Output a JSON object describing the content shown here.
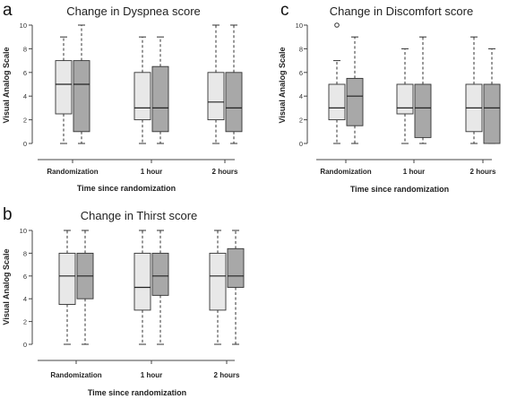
{
  "chart_data": [
    {
      "type": "boxplot",
      "panel": "a",
      "title": "Change in Dyspnea score",
      "xlabel": "Time since randomization",
      "ylabel": "Visual Analog Scale",
      "categories": [
        "Randomization",
        "1 hour",
        "2 hours"
      ],
      "ylim": [
        0,
        10
      ],
      "yticks": [
        "0",
        "2",
        "4",
        "6",
        "8",
        "10"
      ],
      "grid": false,
      "colors": [
        "#e8e8e8",
        "#a8a8a8"
      ],
      "groups": [
        [
          {
            "min": 0,
            "q1": 2.5,
            "median": 5,
            "q3": 7,
            "max": 9,
            "outliers": []
          },
          {
            "min": 0,
            "q1": 1,
            "median": 5,
            "q3": 7,
            "max": 10,
            "outliers": []
          }
        ],
        [
          {
            "min": 0,
            "q1": 2,
            "median": 3,
            "q3": 6,
            "max": 9,
            "outliers": []
          },
          {
            "min": 0,
            "q1": 1,
            "median": 3,
            "q3": 6.5,
            "max": 9,
            "outliers": []
          }
        ],
        [
          {
            "min": 0,
            "q1": 2,
            "median": 3.5,
            "q3": 6,
            "max": 10,
            "outliers": []
          },
          {
            "min": 0,
            "q1": 1,
            "median": 3,
            "q3": 6,
            "max": 10,
            "outliers": []
          }
        ]
      ]
    },
    {
      "type": "boxplot",
      "panel": "c",
      "title": "Change in Discomfort score",
      "xlabel": "Time since randomization",
      "ylabel": "Visual Analog Scale",
      "categories": [
        "Randomization",
        "1 hour",
        "2 hours"
      ],
      "ylim": [
        0,
        10
      ],
      "yticks": [
        "0",
        "2",
        "4",
        "6",
        "8",
        "10"
      ],
      "grid": false,
      "colors": [
        "#e8e8e8",
        "#a8a8a8"
      ],
      "groups": [
        [
          {
            "min": 0,
            "q1": 2,
            "median": 3,
            "q3": 5,
            "max": 7,
            "outliers": [
              10
            ]
          },
          {
            "min": 0,
            "q1": 1.5,
            "median": 4,
            "q3": 5.5,
            "max": 9,
            "outliers": []
          }
        ],
        [
          {
            "min": 0,
            "q1": 2.5,
            "median": 3,
            "q3": 5,
            "max": 8,
            "outliers": []
          },
          {
            "min": 0,
            "q1": 0.5,
            "median": 3,
            "q3": 5,
            "max": 9,
            "outliers": []
          }
        ],
        [
          {
            "min": 0,
            "q1": 1,
            "median": 3,
            "q3": 5,
            "max": 9,
            "outliers": []
          },
          {
            "min": 0,
            "q1": 0,
            "median": 3,
            "q3": 5,
            "max": 8,
            "outliers": []
          }
        ]
      ]
    },
    {
      "type": "boxplot",
      "panel": "b",
      "title": "Change in Thirst score",
      "xlabel": "Time since randomization",
      "ylabel": "Visual Analog Scale",
      "categories": [
        "Randomization",
        "1 hour",
        "2 hours"
      ],
      "ylim": [
        0,
        10
      ],
      "yticks": [
        "0",
        "2",
        "4",
        "6",
        "8",
        "10"
      ],
      "grid": false,
      "colors": [
        "#e8e8e8",
        "#a8a8a8"
      ],
      "groups": [
        [
          {
            "min": 0,
            "q1": 3.5,
            "median": 6,
            "q3": 8,
            "max": 10,
            "outliers": []
          },
          {
            "min": 0,
            "q1": 4,
            "median": 6,
            "q3": 8,
            "max": 10,
            "outliers": []
          }
        ],
        [
          {
            "min": 0,
            "q1": 3,
            "median": 5,
            "q3": 8,
            "max": 10,
            "outliers": []
          },
          {
            "min": 0,
            "q1": 4.3,
            "median": 6,
            "q3": 8,
            "max": 10,
            "outliers": []
          }
        ],
        [
          {
            "min": 0,
            "q1": 3,
            "median": 6,
            "q3": 8,
            "max": 10,
            "outliers": []
          },
          {
            "min": 0,
            "q1": 5,
            "median": 6,
            "q3": 8.4,
            "max": 10,
            "outliers": []
          }
        ]
      ]
    }
  ]
}
